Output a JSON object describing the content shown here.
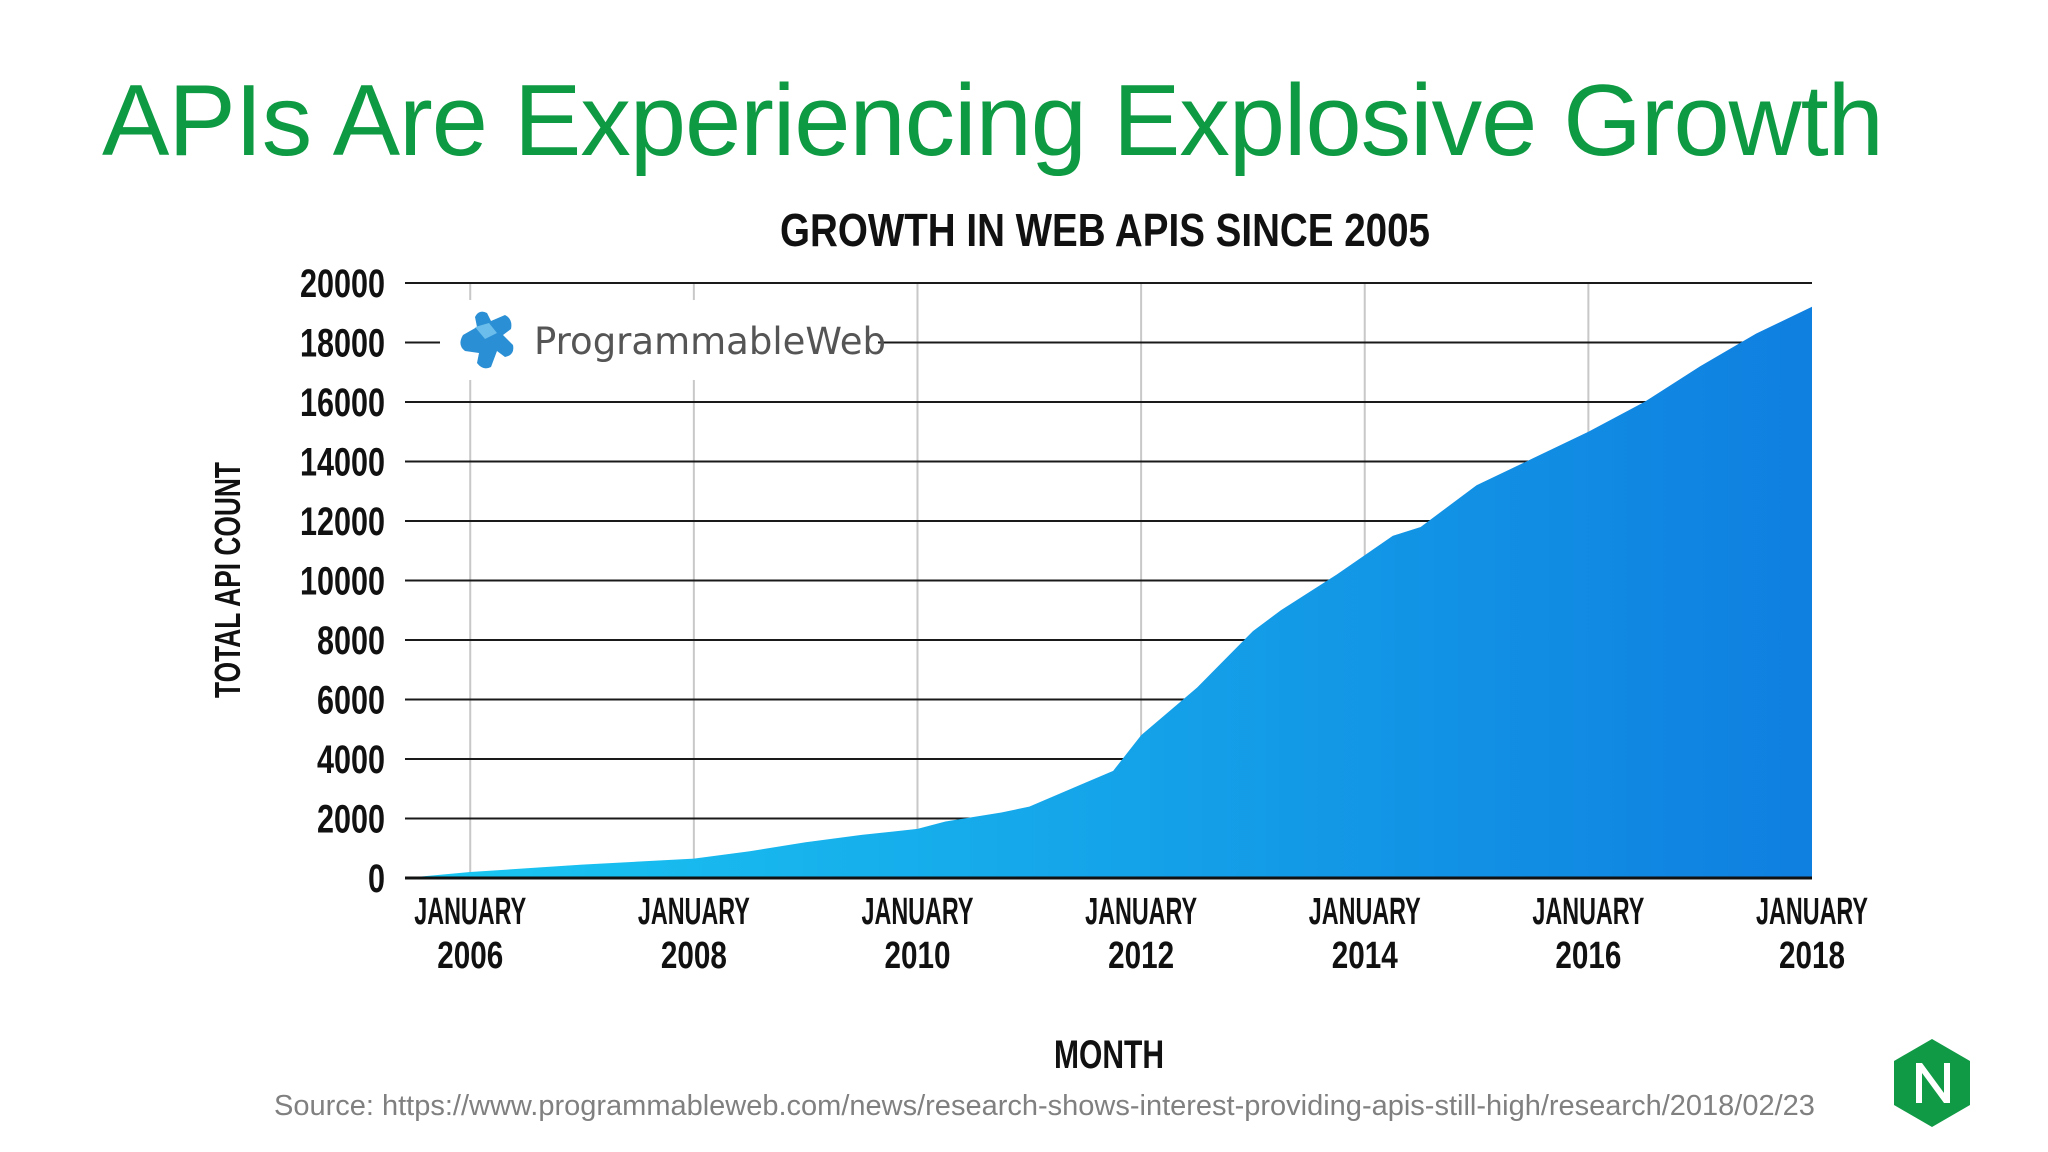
{
  "slide": {
    "title": "APIs Are Experiencing Explosive Growth",
    "source": "Source: https://www.programmableweb.com/news/research-shows-interest-providing-apis-still-high/research/2018/02/23",
    "logo_icon": "nginx-n-icon"
  },
  "brand": {
    "name": "ProgrammableWeb",
    "icon": "puzzle-piece-icon"
  },
  "colors": {
    "title_green": "#0e9a43",
    "area_start": "#1ac8f2",
    "area_end": "#0f7fe0",
    "logo_green": "#109a45"
  },
  "chart_data": {
    "type": "area",
    "title": "GROWTH IN WEB APIS SINCE 2005",
    "xlabel": "MONTH",
    "ylabel": "TOTAL API COUNT",
    "ylim": [
      0,
      20000
    ],
    "xlim": [
      "2005-06",
      "2018-01"
    ],
    "y_ticks": [
      "20000",
      "18000",
      "16000",
      "14000",
      "12000",
      "10000",
      "8000",
      "6000",
      "4000",
      "2000",
      "0"
    ],
    "x_ticks": [
      {
        "date": "2006-01",
        "line1": "JANUARY",
        "line2": "2006"
      },
      {
        "date": "2008-01",
        "line1": "JANUARY",
        "line2": "2008"
      },
      {
        "date": "2010-01",
        "line1": "JANUARY",
        "line2": "2010"
      },
      {
        "date": "2012-01",
        "line1": "JANUARY",
        "line2": "2012"
      },
      {
        "date": "2014-01",
        "line1": "JANUARY",
        "line2": "2014"
      },
      {
        "date": "2016-01",
        "line1": "JANUARY",
        "line2": "2016"
      },
      {
        "date": "2018-01",
        "line1": "JANUARY",
        "line2": "2018"
      }
    ],
    "grid": true,
    "series": [
      {
        "x": [
          "2005-06",
          "2006-01",
          "2007-01",
          "2008-01",
          "2008-07",
          "2009-01",
          "2009-07",
          "2010-01",
          "2010-04",
          "2010-10",
          "2011-01",
          "2011-07",
          "2011-10",
          "2012-01",
          "2012-07",
          "2013-01",
          "2013-04",
          "2013-10",
          "2014-04",
          "2014-07",
          "2015-01",
          "2015-07",
          "2016-01",
          "2016-07",
          "2017-01",
          "2017-07",
          "2018-01"
        ],
        "y": [
          0,
          200,
          450,
          650,
          900,
          1200,
          1450,
          1650,
          1900,
          2200,
          2400,
          3200,
          3600,
          4800,
          6400,
          8300,
          9000,
          10200,
          11500,
          11800,
          13200,
          14100,
          15000,
          16000,
          17200,
          18300,
          19200
        ]
      }
    ]
  }
}
